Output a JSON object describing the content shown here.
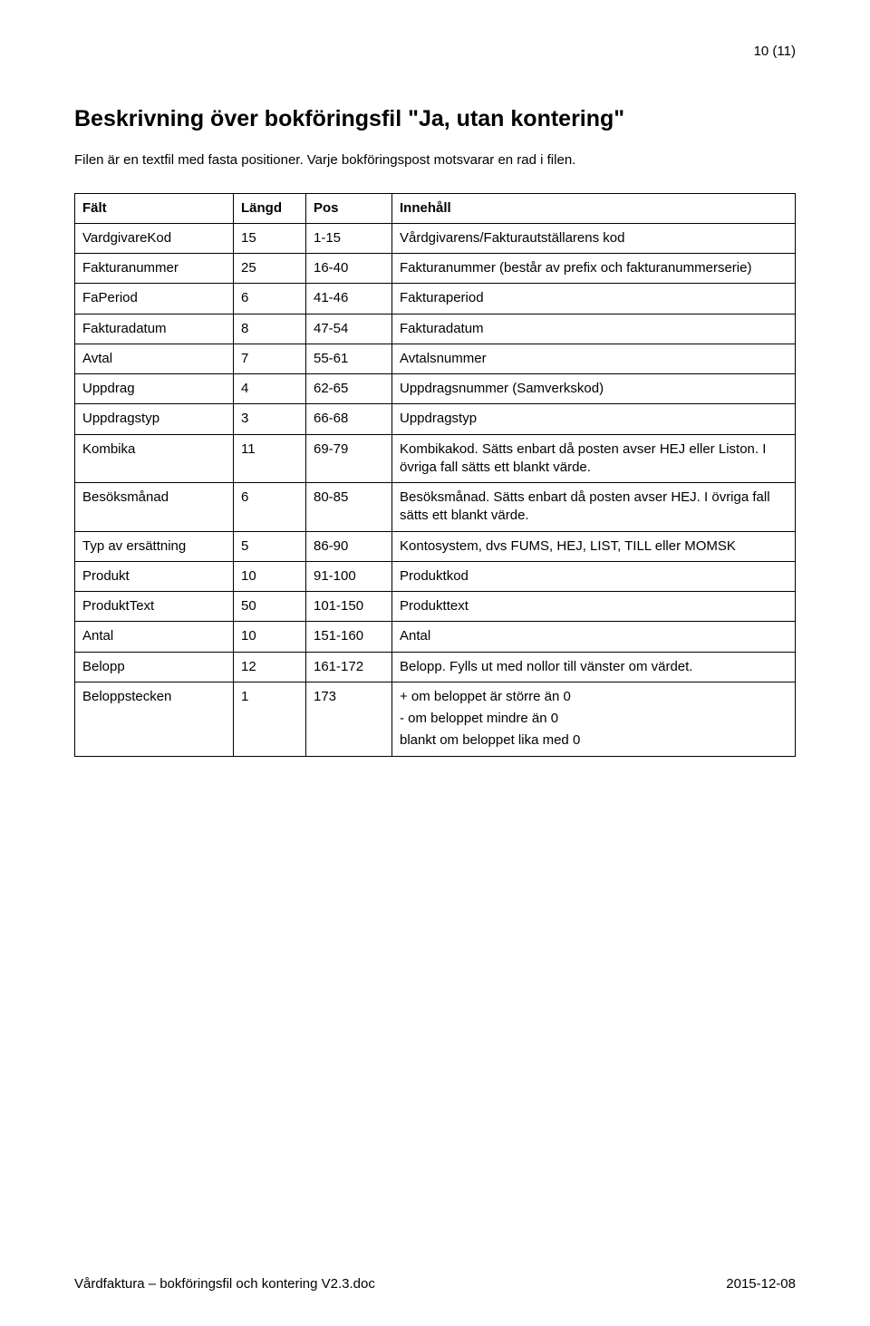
{
  "pageNumber": "10 (11)",
  "title": "Beskrivning över bokföringsfil \"Ja, utan kontering\"",
  "intro": "Filen är en textfil med fasta positioner. Varje bokföringspost motsvarar en rad i filen.",
  "headers": {
    "field": "Fält",
    "length": "Längd",
    "pos": "Pos",
    "content": "Innehåll"
  },
  "rows": [
    {
      "field": "VardgivareKod",
      "length": "15",
      "pos": "1-15",
      "desc": [
        "Vårdgivarens/Fakturautställarens kod"
      ]
    },
    {
      "field": "Fakturanummer",
      "length": "25",
      "pos": "16-40",
      "desc": [
        "Fakturanummer (består av prefix och fakturanummerserie)"
      ]
    },
    {
      "field": "FaPeriod",
      "length": "6",
      "pos": "41-46",
      "desc": [
        "Fakturaperiod"
      ]
    },
    {
      "field": "Fakturadatum",
      "length": "8",
      "pos": "47-54",
      "desc": [
        "Fakturadatum"
      ]
    },
    {
      "field": "Avtal",
      "length": "7",
      "pos": "55-61",
      "desc": [
        "Avtalsnummer"
      ]
    },
    {
      "field": "Uppdrag",
      "length": "4",
      "pos": "62-65",
      "desc": [
        "Uppdragsnummer (Samverkskod)"
      ]
    },
    {
      "field": "Uppdragstyp",
      "length": "3",
      "pos": "66-68",
      "desc": [
        "Uppdragstyp"
      ]
    },
    {
      "field": "Kombika",
      "length": "11",
      "pos": "69-79",
      "desc": [
        "Kombikakod. Sätts enbart då posten avser HEJ eller Liston. I övriga fall sätts ett blankt värde."
      ]
    },
    {
      "field": "Besöksmånad",
      "length": "6",
      "pos": "80-85",
      "desc": [
        "Besöksmånad. Sätts enbart då posten avser HEJ. I övriga fall sätts ett blankt värde."
      ]
    },
    {
      "field": "Typ av ersättning",
      "length": "5",
      "pos": "86-90",
      "desc": [
        "Kontosystem, dvs FUMS, HEJ, LIST, TILL eller MOMSK"
      ]
    },
    {
      "field": "Produkt",
      "length": "10",
      "pos": "91-100",
      "desc": [
        "Produktkod"
      ]
    },
    {
      "field": "ProduktText",
      "length": "50",
      "pos": "101-150",
      "desc": [
        "Produkttext"
      ]
    },
    {
      "field": "Antal",
      "length": "10",
      "pos": "151-160",
      "desc": [
        "Antal"
      ]
    },
    {
      "field": "Belopp",
      "length": "12",
      "pos": "161-172",
      "desc": [
        "Belopp. Fylls ut med nollor till vänster om värdet."
      ]
    },
    {
      "field": "Beloppstecken",
      "length": "1",
      "pos": "173",
      "desc": [
        "+ om beloppet är större än 0",
        "- om beloppet mindre än 0",
        "blankt om beloppet lika med 0"
      ]
    }
  ],
  "footer": {
    "left": "Vårdfaktura – bokföringsfil och kontering V2.3.doc",
    "right": "2015-12-08"
  }
}
